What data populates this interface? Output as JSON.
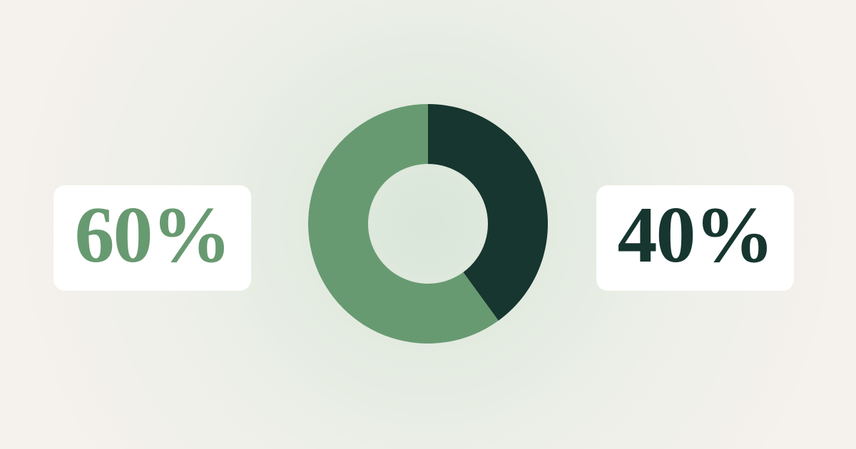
{
  "page": {
    "background_edge_color": "#f5f1ec",
    "background_glow_color": "#d9e6d9"
  },
  "cards": {
    "left": {
      "label": "60%",
      "color": "#689a71",
      "background": "#ffffff"
    },
    "right": {
      "label": "40%",
      "color": "#16362f",
      "background": "#ffffff"
    }
  },
  "chart_data": {
    "type": "pie",
    "subtype": "donut",
    "title": "",
    "legend": false,
    "start_angle_deg": 0,
    "clockwise": true,
    "outer_radius": 168,
    "inner_radius": 84,
    "segments": [
      {
        "name": "dark-40",
        "label": "40%",
        "value": 40,
        "color": "#16362f"
      },
      {
        "name": "green-60",
        "label": "60%",
        "value": 60,
        "color": "#689a71"
      }
    ]
  }
}
